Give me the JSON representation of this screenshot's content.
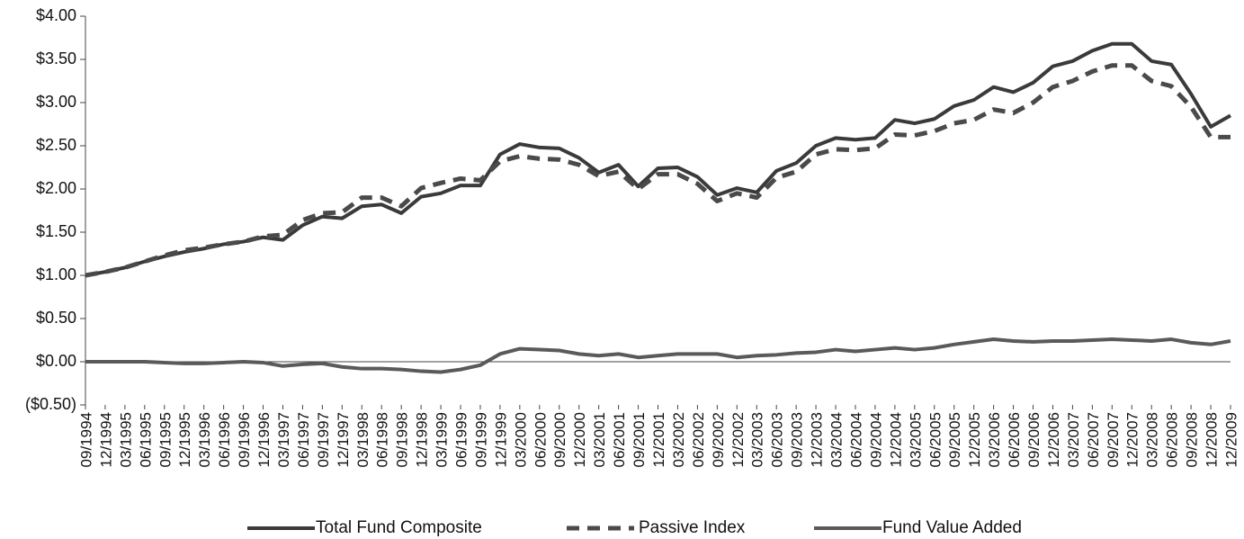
{
  "chart_data": {
    "type": "line",
    "categories": [
      "09/1994",
      "12/1994",
      "03/1995",
      "06/1995",
      "09/1995",
      "12/1995",
      "03/1996",
      "06/1996",
      "09/1996",
      "12/1996",
      "03/1997",
      "06/1997",
      "09/1997",
      "12/1997",
      "03/1998",
      "06/1998",
      "09/1998",
      "12/1998",
      "03/1999",
      "06/1999",
      "09/1999",
      "12/1999",
      "03/2000",
      "06/2000",
      "09/2000",
      "12/2000",
      "03/2001",
      "06/2001",
      "09/2001",
      "12/2001",
      "03/2002",
      "06/2002",
      "09/2002",
      "12/2002",
      "03/2003",
      "06/2003",
      "09/2003",
      "12/2003",
      "03/2004",
      "06/2004",
      "09/2004",
      "12/2004",
      "03/2005",
      "06/2005",
      "09/2005",
      "12/2005",
      "03/2006",
      "06/2006",
      "09/2006",
      "12/2006",
      "03/2007",
      "06/2007",
      "09/2007",
      "12/2007",
      "03/2008",
      "06/2008",
      "09/2008",
      "12/2008",
      "12/2009"
    ],
    "series": [
      {
        "name": "Total Fund Composite",
        "color": "#3a3a3a",
        "dash": false,
        "values": [
          1.0,
          1.04,
          1.09,
          1.16,
          1.22,
          1.27,
          1.31,
          1.36,
          1.39,
          1.44,
          1.41,
          1.58,
          1.68,
          1.66,
          1.8,
          1.82,
          1.72,
          1.91,
          1.95,
          2.04,
          2.04,
          2.4,
          2.52,
          2.48,
          2.47,
          2.36,
          2.19,
          2.28,
          2.03,
          2.24,
          2.25,
          2.14,
          1.93,
          2.01,
          1.96,
          2.21,
          2.3,
          2.5,
          2.59,
          2.57,
          2.59,
          2.8,
          2.76,
          2.81,
          2.96,
          3.03,
          3.18,
          3.12,
          3.23,
          3.42,
          3.48,
          3.6,
          3.68,
          3.68,
          3.48,
          3.44,
          3.1,
          2.72,
          2.85
        ]
      },
      {
        "name": "Passive Index",
        "color": "#4a4a4a",
        "dash": true,
        "values": [
          1.0,
          1.04,
          1.09,
          1.16,
          1.23,
          1.29,
          1.32,
          1.36,
          1.39,
          1.45,
          1.47,
          1.64,
          1.72,
          1.73,
          1.9,
          1.9,
          1.8,
          2.01,
          2.07,
          2.12,
          2.1,
          2.32,
          2.38,
          2.35,
          2.34,
          2.28,
          2.15,
          2.2,
          2.0,
          2.17,
          2.17,
          2.06,
          1.86,
          1.95,
          1.9,
          2.13,
          2.2,
          2.4,
          2.46,
          2.45,
          2.47,
          2.63,
          2.62,
          2.67,
          2.76,
          2.8,
          2.92,
          2.88,
          3.0,
          3.18,
          3.25,
          3.36,
          3.43,
          3.43,
          3.25,
          3.19,
          2.95,
          2.6,
          2.6
        ]
      },
      {
        "name": "Fund Value Added",
        "color": "#5a5a5a",
        "dash": false,
        "values": [
          0.0,
          0.0,
          0.0,
          0.0,
          -0.01,
          -0.02,
          -0.02,
          -0.01,
          0.0,
          -0.01,
          -0.05,
          -0.03,
          -0.02,
          -0.06,
          -0.08,
          -0.08,
          -0.09,
          -0.11,
          -0.12,
          -0.09,
          -0.04,
          0.09,
          0.15,
          0.14,
          0.13,
          0.09,
          0.07,
          0.09,
          0.05,
          0.07,
          0.09,
          0.09,
          0.09,
          0.05,
          0.07,
          0.08,
          0.1,
          0.11,
          0.14,
          0.12,
          0.14,
          0.16,
          0.14,
          0.16,
          0.2,
          0.23,
          0.26,
          0.24,
          0.23,
          0.24,
          0.24,
          0.25,
          0.26,
          0.25,
          0.24,
          0.26,
          0.22,
          0.2,
          0.24
        ]
      }
    ],
    "ylim": [
      -0.5,
      4.0
    ],
    "yticks": [
      {
        "value": -0.5,
        "label": "($0.50)"
      },
      {
        "value": 0,
        "label": "$0.00"
      },
      {
        "value": 0.5,
        "label": "$0.50"
      },
      {
        "value": 1,
        "label": "$1.00"
      },
      {
        "value": 1.5,
        "label": "$1.50"
      },
      {
        "value": 2,
        "label": "$2.00"
      },
      {
        "value": 2.5,
        "label": "$2.50"
      },
      {
        "value": 3,
        "label": "$3.00"
      },
      {
        "value": 3.5,
        "label": "$3.50"
      },
      {
        "value": 4,
        "label": "$4.00"
      }
    ],
    "grid": false,
    "legend": "bottom"
  }
}
